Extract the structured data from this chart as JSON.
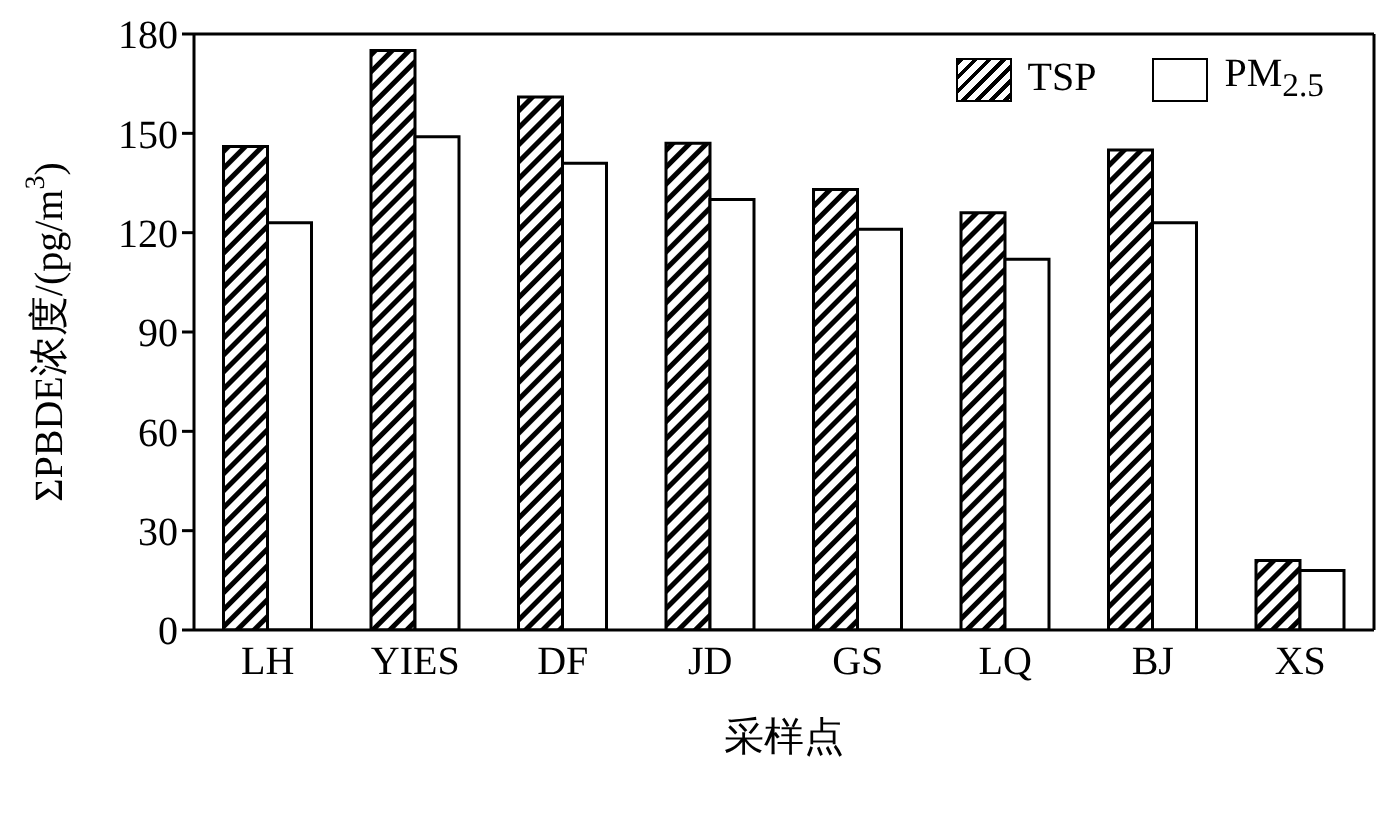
{
  "chart_data": {
    "type": "bar",
    "xlabel": "采样点",
    "ylabel": "ΣPBDE浓度/(pg/m$^{3}$)",
    "categories": [
      "LH",
      "YIES",
      "DF",
      "JD",
      "GS",
      "LQ",
      "BJ",
      "XS"
    ],
    "series": [
      {
        "name": "TSP",
        "color": "#000000",
        "values": [
          146,
          175,
          161,
          147,
          133,
          126,
          145,
          21
        ]
      },
      {
        "name": "PM$_{2.5}$",
        "color": "#ffffff",
        "values": [
          123,
          149,
          141,
          130,
          121,
          112,
          123,
          18
        ]
      }
    ],
    "ylim": [
      0,
      180
    ],
    "yticks": [
      0,
      30,
      60,
      90,
      120,
      150,
      180
    ],
    "legend": "top right"
  }
}
